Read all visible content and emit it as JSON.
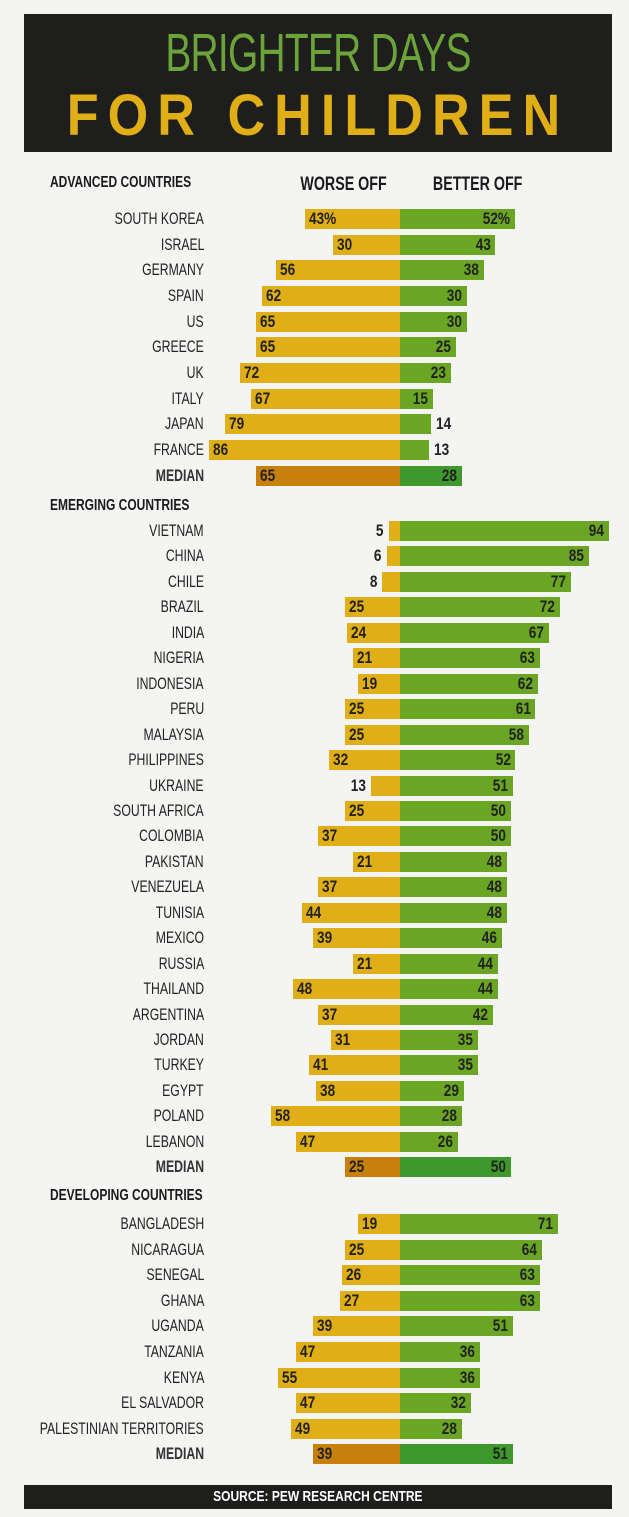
{
  "title_line1": "BRIGHTER DAYS",
  "title_line2": "FOR CHILDREN",
  "source": "SOURCE: PEW RESEARCH CENTRE",
  "colors": {
    "worse": "#e0ae16",
    "better": "#6aa623",
    "median_worse": "#c8800c",
    "median_better": "#3e982c",
    "banner": "#1e1e1c"
  },
  "chart_data": {
    "type": "bar",
    "orientation": "diverging-horizontal",
    "unit": "%",
    "series": [
      {
        "name": "WORSE OFF",
        "side": "left"
      },
      {
        "name": "BETTER OFF",
        "side": "right"
      }
    ],
    "groups": [
      {
        "name": "ADVANCED COUNTRIES",
        "rows": [
          {
            "country": "SOUTH KOREA",
            "worse": 43,
            "better": 52,
            "worse_label": "43%",
            "better_label": "52%"
          },
          {
            "country": "ISRAEL",
            "worse": 30,
            "better": 43
          },
          {
            "country": "GERMANY",
            "worse": 56,
            "better": 38
          },
          {
            "country": "SPAIN",
            "worse": 62,
            "better": 30
          },
          {
            "country": "US",
            "worse": 65,
            "better": 30
          },
          {
            "country": "GREECE",
            "worse": 65,
            "better": 25
          },
          {
            "country": "UK",
            "worse": 72,
            "better": 23
          },
          {
            "country": "ITALY",
            "worse": 67,
            "better": 15
          },
          {
            "country": "JAPAN",
            "worse": 79,
            "better": 14
          },
          {
            "country": "FRANCE",
            "worse": 86,
            "better": 13
          },
          {
            "country": "MEDIAN",
            "worse": 65,
            "better": 28,
            "median": true
          }
        ]
      },
      {
        "name": "EMERGING COUNTRIES",
        "rows": [
          {
            "country": "VIETNAM",
            "worse": 5,
            "better": 94
          },
          {
            "country": "CHINA",
            "worse": 6,
            "better": 85
          },
          {
            "country": "CHILE",
            "worse": 8,
            "better": 77
          },
          {
            "country": "BRAZIL",
            "worse": 25,
            "better": 72
          },
          {
            "country": "INDIA",
            "worse": 24,
            "better": 67
          },
          {
            "country": "NIGERIA",
            "worse": 21,
            "better": 63
          },
          {
            "country": "INDONESIA",
            "worse": 19,
            "better": 62
          },
          {
            "country": "PERU",
            "worse": 25,
            "better": 61
          },
          {
            "country": "MALAYSIA",
            "worse": 25,
            "better": 58
          },
          {
            "country": "PHILIPPINES",
            "worse": 32,
            "better": 52
          },
          {
            "country": "UKRAINE",
            "worse": 13,
            "better": 51
          },
          {
            "country": "SOUTH AFRICA",
            "worse": 25,
            "better": 50
          },
          {
            "country": "COLOMBIA",
            "worse": 37,
            "better": 50
          },
          {
            "country": "PAKISTAN",
            "worse": 21,
            "better": 48
          },
          {
            "country": "VENEZUELA",
            "worse": 37,
            "better": 48
          },
          {
            "country": "TUNISIA",
            "worse": 44,
            "better": 48
          },
          {
            "country": "MEXICO",
            "worse": 39,
            "better": 46
          },
          {
            "country": "RUSSIA",
            "worse": 21,
            "better": 44
          },
          {
            "country": "THAILAND",
            "worse": 48,
            "better": 44
          },
          {
            "country": "ARGENTINA",
            "worse": 37,
            "better": 42
          },
          {
            "country": "JORDAN",
            "worse": 31,
            "better": 35
          },
          {
            "country": "TURKEY",
            "worse": 41,
            "better": 35
          },
          {
            "country": "EGYPT",
            "worse": 38,
            "better": 29
          },
          {
            "country": "POLAND",
            "worse": 58,
            "better": 28
          },
          {
            "country": "LEBANON",
            "worse": 47,
            "better": 26
          },
          {
            "country": "MEDIAN",
            "worse": 25,
            "better": 50,
            "median": true
          }
        ]
      },
      {
        "name": "DEVELOPING COUNTRIES",
        "rows": [
          {
            "country": "BANGLADESH",
            "worse": 19,
            "better": 71
          },
          {
            "country": "NICARAGUA",
            "worse": 25,
            "better": 64
          },
          {
            "country": "SENEGAL",
            "worse": 26,
            "better": 63
          },
          {
            "country": "GHANA",
            "worse": 27,
            "better": 63
          },
          {
            "country": "UGANDA",
            "worse": 39,
            "better": 51
          },
          {
            "country": "TANZANIA",
            "worse": 47,
            "better": 36
          },
          {
            "country": "KENYA",
            "worse": 55,
            "better": 36
          },
          {
            "country": "EL SALVADOR",
            "worse": 47,
            "better": 32
          },
          {
            "country": "PALESTINIAN TERRITORIES",
            "worse": 49,
            "better": 28
          },
          {
            "country": "MEDIAN",
            "worse": 39,
            "better": 51,
            "median": true
          }
        ]
      }
    ]
  }
}
